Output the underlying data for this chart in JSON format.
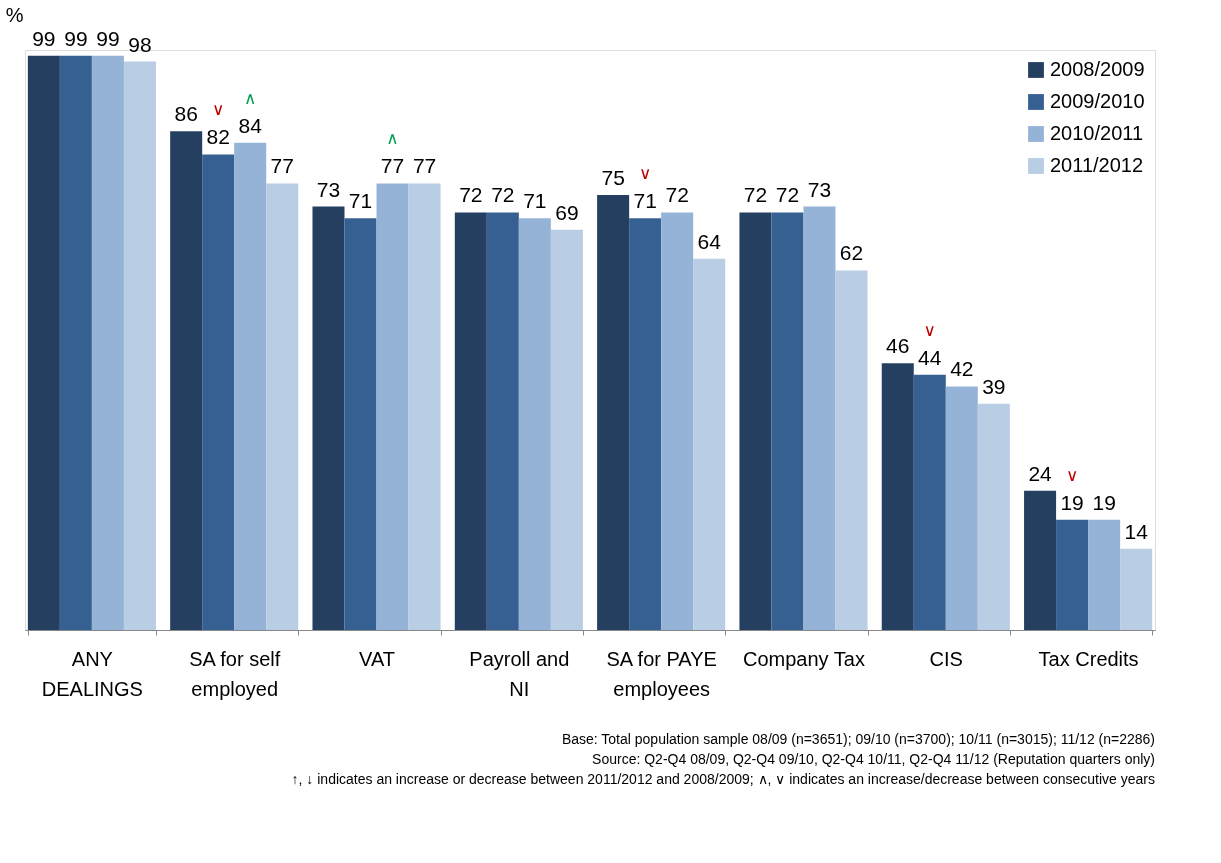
{
  "chart_data": {
    "type": "bar",
    "ylabel": "%",
    "categories": [
      "ANY DEALINGS",
      "SA for self employed",
      "VAT",
      "Payroll and NI",
      "SA for PAYE employees",
      "Company Tax",
      "CIS",
      "Tax Credits"
    ],
    "series": [
      {
        "name": "2008/2009",
        "color": "#243f60",
        "values": [
          99,
          86,
          73,
          72,
          75,
          72,
          46,
          24
        ]
      },
      {
        "name": "2009/2010",
        "color": "#366092",
        "values": [
          99,
          82,
          71,
          72,
          71,
          72,
          44,
          19
        ]
      },
      {
        "name": "2010/2011",
        "color": "#95b3d7",
        "values": [
          99,
          84,
          77,
          71,
          72,
          73,
          42,
          19
        ]
      },
      {
        "name": "2011/2012",
        "color": "#b9cde5",
        "values": [
          98,
          77,
          77,
          69,
          64,
          62,
          39,
          14
        ]
      }
    ],
    "ylim": [
      0,
      100
    ],
    "tick_labels": "x",
    "data_labels": true,
    "legend": "top right",
    "grid": false,
    "annotations": [
      {
        "text": "∨",
        "x": "SA for self employed",
        "y": 82
      },
      {
        "text": "∧",
        "x": "SA for self employed",
        "y": 84
      },
      {
        "text": "∧",
        "x": "VAT",
        "y": 77
      },
      {
        "text": "∨",
        "x": "SA for PAYE employees",
        "y": 71
      },
      {
        "text": "∨",
        "x": "CIS",
        "y": 44
      },
      {
        "text": "∨",
        "x": "Tax Credits",
        "y": 19
      },
      "Base: Total population sample 08/09 (n=3651); 09/10 (n=3700); 10/11 (n=3015); 11/12 (n=2286)",
      "Source: Q2-Q4 08/09, Q2-Q4 09/10, Q2-Q4 10/11, Q2-Q4 11/12 (Reputation quarters only)",
      "↑, ↓ indicates an increase or decrease between 2011/2012 and 2008/2009; ∧, ∨ indicates an increase/decrease between consecutive years"
    ]
  }
}
